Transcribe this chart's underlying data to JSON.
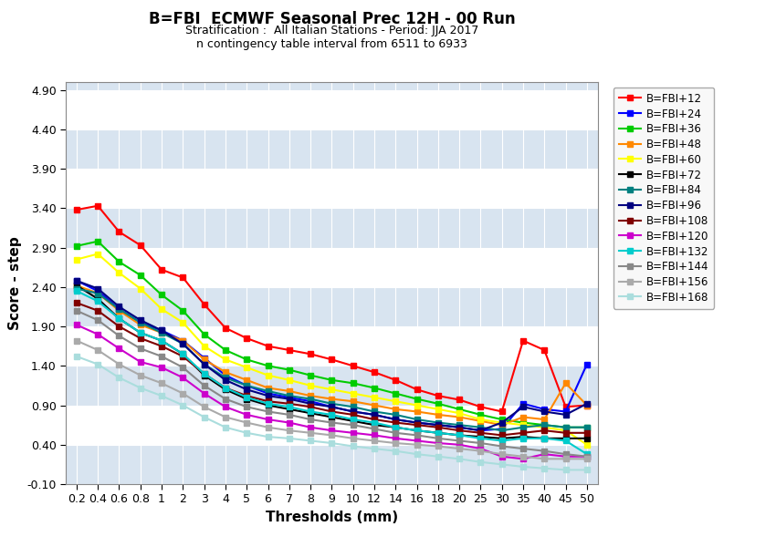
{
  "title": "B=FBI  ECMWF Seasonal Prec 12H - 00 Run",
  "subtitle1": "Stratification :  All Italian Stations - Period: JJA 2017",
  "subtitle2": "n contingency table interval from 6511 to 6933",
  "xlabel": "Thresholds (mm)",
  "ylabel": "Score - step",
  "ylim": [
    -0.1,
    5.0
  ],
  "yticks": [
    -0.1,
    0.4,
    0.9,
    1.4,
    1.9,
    2.4,
    2.9,
    3.4,
    3.9,
    4.4,
    4.9
  ],
  "background_color": "#ffffff",
  "plot_bg_light": "#d8e4f0",
  "plot_bg_dark": "#ffffff",
  "grid_color": "#ffffff",
  "thresholds_labels": [
    "0.2",
    "0.4",
    "0.6",
    "0.8",
    "1",
    "2",
    "3",
    "4",
    "5",
    "6",
    "7",
    "8",
    "9",
    "10",
    "12",
    "14",
    "16",
    "18",
    "20",
    "25",
    "30",
    "35",
    "40",
    "45",
    "50"
  ],
  "series": [
    {
      "label": "B=FBI+12",
      "color": "#ff0000",
      "values": [
        3.38,
        3.43,
        3.1,
        2.93,
        2.62,
        2.52,
        2.18,
        1.88,
        1.75,
        1.65,
        1.6,
        1.55,
        1.48,
        1.4,
        1.32,
        1.22,
        1.1,
        1.02,
        0.97,
        0.88,
        0.82,
        1.72,
        1.6,
        0.88,
        0.9
      ]
    },
    {
      "label": "B=FBI+24",
      "color": "#0000ff",
      "values": [
        2.48,
        2.35,
        2.12,
        1.95,
        1.85,
        1.72,
        1.5,
        1.28,
        1.15,
        1.05,
        1.0,
        0.95,
        0.88,
        0.82,
        0.78,
        0.72,
        0.68,
        0.65,
        0.62,
        0.58,
        0.6,
        0.92,
        0.85,
        0.82,
        1.42
      ]
    },
    {
      "label": "B=FBI+36",
      "color": "#00cc00",
      "values": [
        2.92,
        2.98,
        2.72,
        2.55,
        2.3,
        2.1,
        1.8,
        1.6,
        1.48,
        1.4,
        1.35,
        1.28,
        1.22,
        1.18,
        1.12,
        1.05,
        0.98,
        0.92,
        0.85,
        0.78,
        0.72,
        0.68,
        0.65,
        0.62,
        0.62
      ]
    },
    {
      "label": "B=FBI+48",
      "color": "#ff8800",
      "values": [
        2.42,
        2.32,
        2.1,
        1.92,
        1.82,
        1.72,
        1.48,
        1.32,
        1.22,
        1.12,
        1.08,
        1.02,
        0.98,
        0.95,
        0.9,
        0.85,
        0.82,
        0.78,
        0.75,
        0.7,
        0.65,
        0.75,
        0.72,
        1.18,
        0.9
      ]
    },
    {
      "label": "B=FBI+60",
      "color": "#ffff00",
      "values": [
        2.75,
        2.82,
        2.58,
        2.38,
        2.12,
        1.95,
        1.65,
        1.48,
        1.38,
        1.28,
        1.22,
        1.15,
        1.1,
        1.05,
        1.0,
        0.95,
        0.9,
        0.85,
        0.8,
        0.72,
        0.68,
        0.65,
        0.62,
        0.58,
        0.4
      ]
    },
    {
      "label": "B=FBI+72",
      "color": "#000000",
      "values": [
        2.42,
        2.25,
        2.0,
        1.82,
        1.72,
        1.55,
        1.28,
        1.1,
        0.98,
        0.9,
        0.85,
        0.8,
        0.75,
        0.7,
        0.65,
        0.62,
        0.58,
        0.55,
        0.52,
        0.5,
        0.48,
        0.5,
        0.48,
        0.48,
        0.48
      ]
    },
    {
      "label": "B=FBI+84",
      "color": "#008080",
      "values": [
        2.38,
        2.32,
        2.12,
        1.95,
        1.82,
        1.68,
        1.42,
        1.25,
        1.15,
        1.08,
        1.02,
        0.98,
        0.92,
        0.88,
        0.82,
        0.78,
        0.72,
        0.68,
        0.65,
        0.62,
        0.58,
        0.62,
        0.65,
        0.62,
        0.62
      ]
    },
    {
      "label": "B=FBI+96",
      "color": "#000080",
      "values": [
        2.48,
        2.38,
        2.15,
        1.98,
        1.85,
        1.68,
        1.42,
        1.22,
        1.1,
        1.02,
        0.98,
        0.92,
        0.88,
        0.82,
        0.78,
        0.72,
        0.68,
        0.65,
        0.62,
        0.58,
        0.68,
        0.88,
        0.82,
        0.78,
        0.92
      ]
    },
    {
      "label": "B=FBI+108",
      "color": "#800000",
      "values": [
        2.2,
        2.1,
        1.9,
        1.75,
        1.65,
        1.52,
        1.3,
        1.12,
        1.02,
        0.95,
        0.92,
        0.88,
        0.82,
        0.78,
        0.72,
        0.68,
        0.65,
        0.62,
        0.58,
        0.55,
        0.52,
        0.55,
        0.58,
        0.55,
        0.55
      ]
    },
    {
      "label": "B=FBI+120",
      "color": "#cc00cc",
      "values": [
        1.92,
        1.8,
        1.62,
        1.45,
        1.38,
        1.25,
        1.05,
        0.88,
        0.78,
        0.72,
        0.68,
        0.62,
        0.58,
        0.55,
        0.52,
        0.48,
        0.45,
        0.42,
        0.4,
        0.35,
        0.25,
        0.22,
        0.28,
        0.25,
        0.25
      ]
    },
    {
      "label": "B=FBI+132",
      "color": "#00cccc",
      "values": [
        2.35,
        2.22,
        2.0,
        1.82,
        1.72,
        1.55,
        1.3,
        1.12,
        1.0,
        0.92,
        0.88,
        0.82,
        0.78,
        0.72,
        0.68,
        0.62,
        0.58,
        0.55,
        0.52,
        0.48,
        0.45,
        0.48,
        0.48,
        0.45,
        0.28
      ]
    },
    {
      "label": "B=FBI+144",
      "color": "#888888",
      "values": [
        2.1,
        1.98,
        1.78,
        1.62,
        1.52,
        1.38,
        1.15,
        0.98,
        0.88,
        0.82,
        0.78,
        0.72,
        0.68,
        0.65,
        0.6,
        0.55,
        0.52,
        0.48,
        0.45,
        0.42,
        0.38,
        0.35,
        0.32,
        0.28,
        0.25
      ]
    },
    {
      "label": "B=FBI+156",
      "color": "#aaaaaa",
      "values": [
        1.72,
        1.6,
        1.42,
        1.28,
        1.18,
        1.05,
        0.88,
        0.75,
        0.68,
        0.62,
        0.58,
        0.55,
        0.52,
        0.48,
        0.45,
        0.42,
        0.4,
        0.38,
        0.35,
        0.32,
        0.28,
        0.25,
        0.22,
        0.22,
        0.22
      ]
    },
    {
      "label": "B=FBI+168",
      "color": "#aadddd",
      "values": [
        1.52,
        1.42,
        1.25,
        1.12,
        1.02,
        0.9,
        0.75,
        0.62,
        0.55,
        0.5,
        0.48,
        0.45,
        0.42,
        0.38,
        0.35,
        0.32,
        0.28,
        0.25,
        0.22,
        0.18,
        0.15,
        0.12,
        0.1,
        0.08,
        0.08
      ]
    }
  ]
}
